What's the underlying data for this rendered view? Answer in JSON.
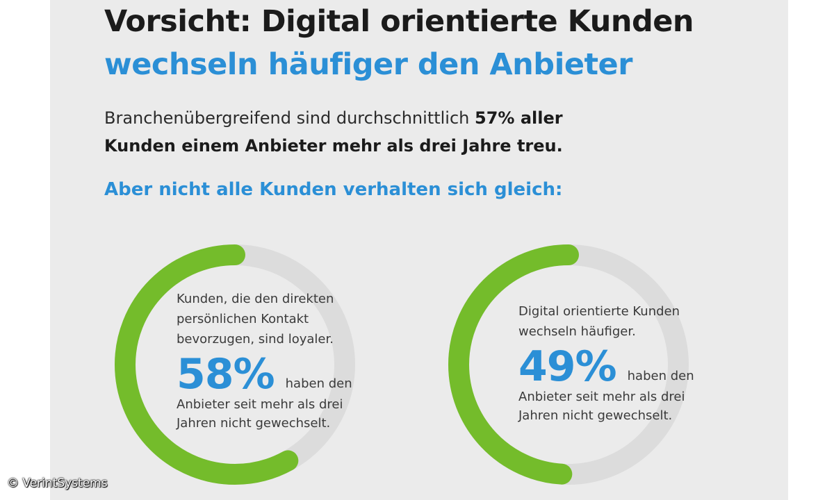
{
  "title_line1": "Vorsicht: Digital orientierte  Kunden",
  "title_line2": "wechseln häufiger den Anbieter",
  "lead": {
    "text_before": "Branchenübergreifend sind durchschnittlich ",
    "bold_line1": "57% aller",
    "bold_line2": "Kunden einem Anbieter mehr als drei Jahre treu."
  },
  "subheading": "Aber nicht alle Kunden verhalten sich gleich:",
  "colors": {
    "accent_blue": "#2b8fd6",
    "ring_green": "#74bc2b",
    "ring_track": "#dcdcdc",
    "panel_bg": "#ebebeb"
  },
  "chart_data": {
    "type": "donut",
    "series": [
      {
        "description_lines": [
          "Kunden, die den direkten",
          "persönlichen Kontakt",
          "bevorzugen, sind loyaler."
        ],
        "value": 58,
        "value_label": "58%",
        "after_value": "haben den",
        "tail_lines": [
          "Anbieter seit mehr als drei",
          "Jahren nicht gewechselt."
        ]
      },
      {
        "description_lines": [
          "Digital orientierte Kunden",
          "wechseln häufiger."
        ],
        "value": 49,
        "value_label": "49%",
        "after_value": "haben den",
        "tail_lines": [
          "Anbieter seit mehr als drei",
          "Jahren nicht gewechselt."
        ]
      }
    ]
  },
  "credit": "© VerintSystems"
}
